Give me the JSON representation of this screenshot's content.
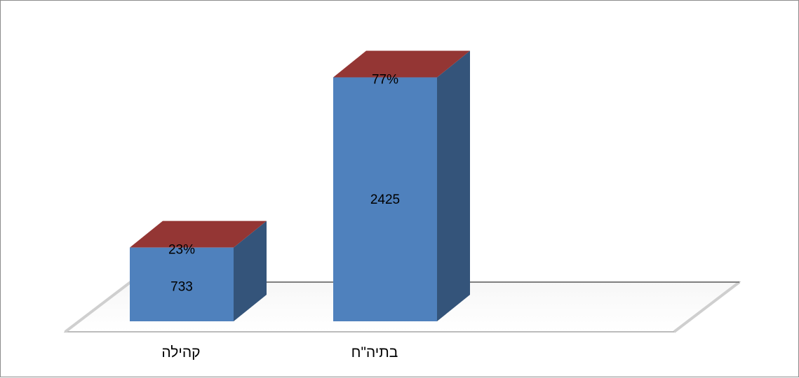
{
  "chart_data": {
    "type": "bar",
    "stacked": true,
    "three_d": true,
    "categories": [
      "קהילה",
      "בתיה\"ח"
    ],
    "series": [
      {
        "values": [
          733,
          2425
        ],
        "color": "#4f81bd"
      },
      {
        "values": [
          0,
          0
        ],
        "color": "#943634"
      }
    ],
    "value_labels": [
      "733",
      "2425"
    ],
    "percent_labels": [
      "23%",
      "77%"
    ],
    "title": "",
    "xlabel": "",
    "ylabel": "",
    "ylim": [
      0,
      2600
    ],
    "grid": false,
    "legend": "none",
    "colors": {
      "bar_front": "#4f81bd",
      "bar_side": "#34547a",
      "bar_top": "#943634",
      "floor_stroke": "#a6a6a6",
      "back_wall": "#808080"
    }
  }
}
